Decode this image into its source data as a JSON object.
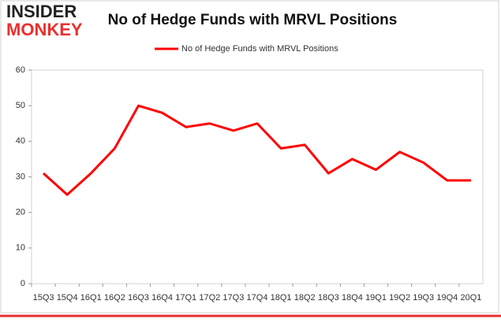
{
  "brand": {
    "line1": "INSIDER",
    "line2": "MONKEY"
  },
  "chart_data": {
    "type": "line",
    "title": "No of Hedge Funds with MRVL Positions",
    "categories": [
      "15Q3",
      "15Q4",
      "16Q1",
      "16Q2",
      "16Q3",
      "16Q4",
      "17Q1",
      "17Q2",
      "17Q3",
      "17Q4",
      "18Q1",
      "18Q2",
      "18Q3",
      "18Q4",
      "19Q1",
      "19Q2",
      "19Q3",
      "19Q4",
      "20Q1"
    ],
    "series": [
      {
        "name": "No of Hedge Funds with MRVL Positions",
        "color": "#ff0000",
        "values": [
          31,
          25,
          31,
          38,
          50,
          48,
          44,
          45,
          43,
          45,
          38,
          39,
          31,
          35,
          32,
          37,
          34,
          29,
          29
        ]
      }
    ],
    "ylim": [
      0,
      60
    ],
    "yticks": [
      0,
      10,
      20,
      30,
      40,
      50,
      60
    ],
    "grid": false,
    "legend": "top"
  }
}
